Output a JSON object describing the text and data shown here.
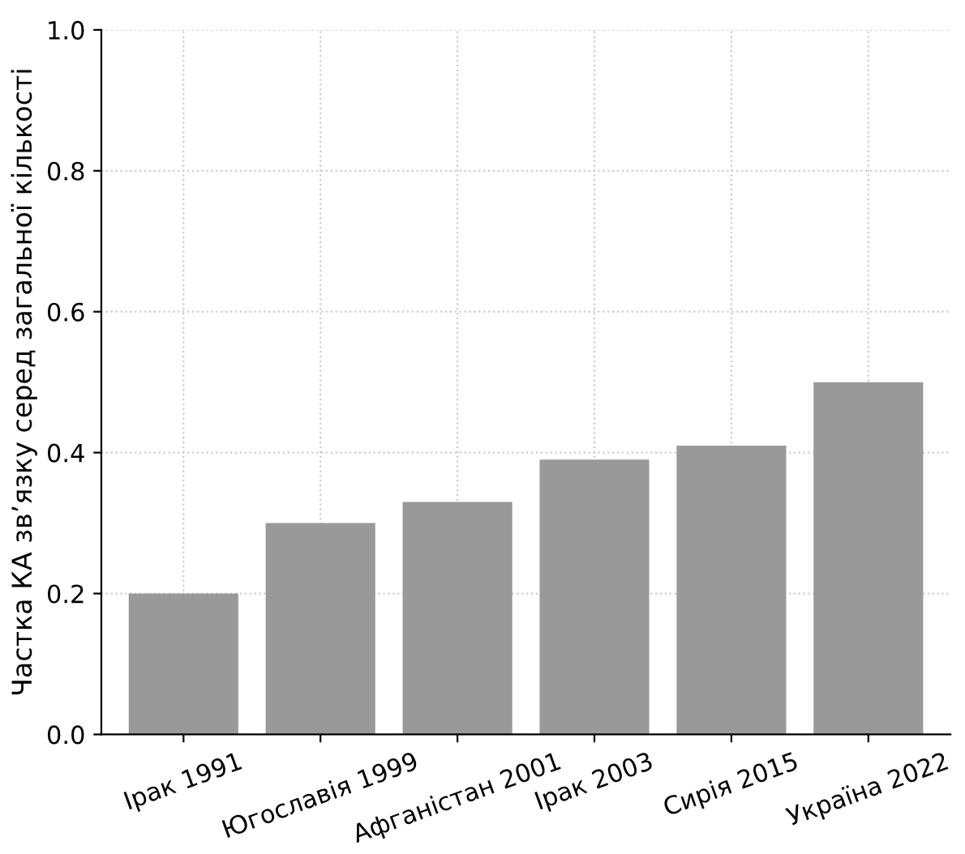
{
  "chart_data": {
    "type": "bar",
    "ylabel": "Частка КА зв’язку серед загальної кількості",
    "categories": [
      "Ірак 1991",
      "Югославія 1999",
      "Афганістан 2001",
      "Ірак 2003",
      "Сирія 2015",
      "Україна 2022"
    ],
    "values": [
      0.2,
      0.3,
      0.33,
      0.39,
      0.41,
      0.5
    ],
    "color": "#999999",
    "ylim": [
      0,
      1.0
    ],
    "yticks": [
      {
        "value": 0,
        "label": "0.0"
      },
      {
        "value": 0.2,
        "label": "0.2"
      },
      {
        "value": 0.4,
        "label": "0.4"
      },
      {
        "value": 0.6,
        "label": "0.6"
      },
      {
        "value": 0.8,
        "label": "0.8"
      },
      {
        "value": 1.0,
        "label": "1.0"
      }
    ],
    "grid": true
  }
}
